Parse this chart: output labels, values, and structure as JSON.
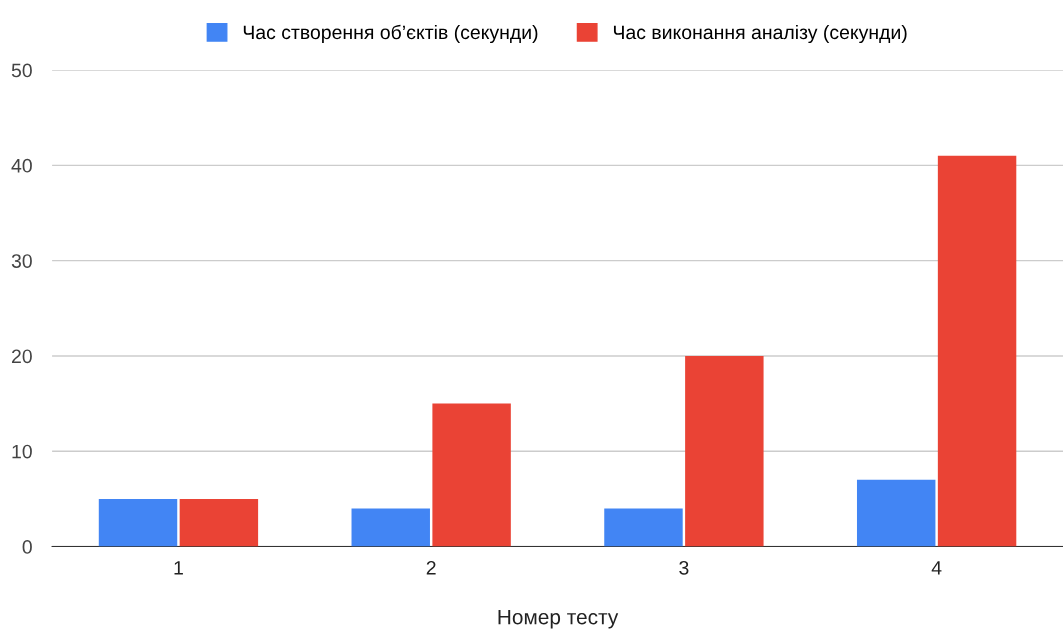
{
  "chart_data": {
    "type": "bar",
    "xlabel": "Номер тесту",
    "categories": [
      "1",
      "2",
      "3",
      "4"
    ],
    "series": [
      {
        "name": "Час створення об’єктів (секунди)",
        "color": "#4285f4",
        "values": [
          5,
          4,
          4,
          7
        ]
      },
      {
        "name": "Час виконання аналізу (секунди)",
        "color": "#ea4335",
        "values": [
          5,
          15,
          20,
          41
        ]
      }
    ],
    "ylim": [
      0,
      50
    ],
    "yticks": [
      0,
      10,
      20,
      30,
      40,
      50
    ],
    "grid": "y",
    "legend": "top"
  }
}
